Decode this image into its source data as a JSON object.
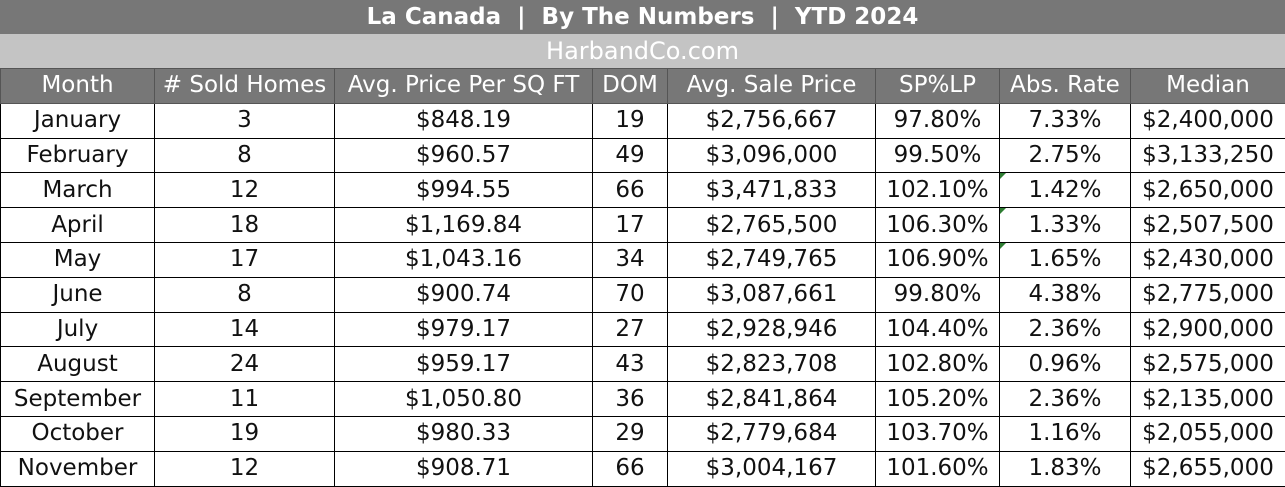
{
  "header": {
    "title": "La Canada  |  By The Numbers  |  YTD 2024",
    "site": "HarbandCo.com"
  },
  "columns": [
    "Month",
    "# Sold Homes",
    "Avg. Price Per SQ FT",
    "DOM",
    "Avg. Sale Price",
    "SP%LP",
    "Abs. Rate",
    "Median"
  ],
  "rows": [
    [
      "January",
      "3",
      "$848.19",
      "19",
      "$2,756,667",
      "97.80%",
      "7.33%",
      "$2,400,000"
    ],
    [
      "February",
      "8",
      "$960.57",
      "49",
      "$3,096,000",
      "99.50%",
      "2.75%",
      "$3,133,250"
    ],
    [
      "March",
      "12",
      "$994.55",
      "66",
      "$3,471,833",
      "102.10%",
      "1.42%",
      "$2,650,000"
    ],
    [
      "April",
      "18",
      "$1,169.84",
      "17",
      "$2,765,500",
      "106.30%",
      "1.33%",
      "$2,507,500"
    ],
    [
      "May",
      "17",
      "$1,043.16",
      "34",
      "$2,749,765",
      "106.90%",
      "1.65%",
      "$2,430,000"
    ],
    [
      "June",
      "8",
      "$900.74",
      "70",
      "$3,087,661",
      "99.80%",
      "4.38%",
      "$2,775,000"
    ],
    [
      "July",
      "14",
      "$979.17",
      "27",
      "$2,928,946",
      "104.40%",
      "2.36%",
      "$2,900,000"
    ],
    [
      "August",
      "24",
      "$959.17",
      "43",
      "$2,823,708",
      "102.80%",
      "0.96%",
      "$2,575,000"
    ],
    [
      "September",
      "11",
      "$1,050.80",
      "36",
      "$2,841,864",
      "105.20%",
      "2.36%",
      "$2,135,000"
    ],
    [
      "October",
      "19",
      "$980.33",
      "29",
      "$2,779,684",
      "103.70%",
      "1.16%",
      "$2,055,000"
    ],
    [
      "November",
      "12",
      "$908.71",
      "66",
      "$3,004,167",
      "101.60%",
      "1.83%",
      "$2,655,000"
    ]
  ],
  "colors": {
    "header_bg": "#777777",
    "site_bg": "#c4c4c4",
    "cell_flag": "#2e7d32"
  }
}
